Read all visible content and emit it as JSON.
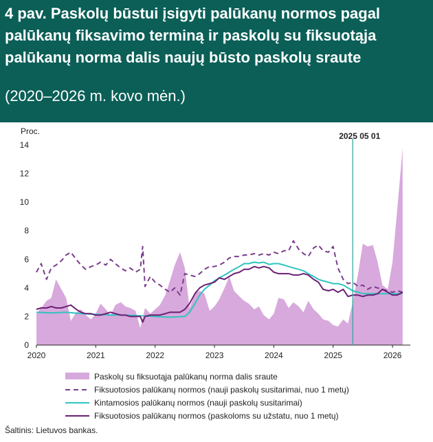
{
  "header": {
    "title": "4 pav. Paskolų būstui įsigyti palūkanų normos pagal palūkanų fiksavimo terminą ir paskolų su fiksuotąja palūkanų norma dalis naujų būsto paskolų sraute",
    "subtitle": "(2020–2026 m. kovo mėn.)"
  },
  "colors": {
    "header_bg": "#0b5f57",
    "area": "#d8a9dc",
    "fixed_new": "#7b3b8c",
    "variable": "#2ec4c0",
    "fixed_stock": "#6a1f73",
    "vline": "#2aa59b"
  },
  "source": "Šaltinis: Lietuvos bankas.",
  "chart_data": {
    "type": "line",
    "ylabel": "Proc.",
    "ylim": [
      0,
      14
    ],
    "y_ticks": [
      "0",
      "2",
      "4",
      "6",
      "8",
      "10",
      "12",
      "14"
    ],
    "x_range": [
      2020.0,
      2026.3
    ],
    "x_ticks": [
      "2020",
      "2021",
      "2022",
      "2023",
      "2024",
      "2025",
      "2026"
    ],
    "annotation": {
      "label": "2025 05 01",
      "x": 2025.33
    },
    "series": [
      {
        "name": "Paskolų su fiksuotąja palūkanų norma dalis sraute",
        "kind": "area",
        "x": [
          2020.0,
          2020.08,
          2020.17,
          2020.25,
          2020.33,
          2020.42,
          2020.5,
          2020.58,
          2020.67,
          2020.75,
          2020.83,
          2020.92,
          2021.0,
          2021.08,
          2021.17,
          2021.25,
          2021.33,
          2021.42,
          2021.5,
          2021.58,
          2021.67,
          2021.75,
          2021.83,
          2021.92,
          2022.0,
          2022.08,
          2022.17,
          2022.25,
          2022.33,
          2022.42,
          2022.5,
          2022.58,
          2022.67,
          2022.75,
          2022.83,
          2022.92,
          2023.0,
          2023.08,
          2023.17,
          2023.25,
          2023.33,
          2023.42,
          2023.5,
          2023.58,
          2023.67,
          2023.75,
          2023.83,
          2023.92,
          2024.0,
          2024.08,
          2024.17,
          2024.25,
          2024.33,
          2024.42,
          2024.5,
          2024.58,
          2024.67,
          2024.75,
          2024.83,
          2024.92,
          2025.0,
          2025.08,
          2025.17,
          2025.25,
          2025.33,
          2025.42,
          2025.5,
          2025.58,
          2025.67,
          2025.75,
          2025.83,
          2025.92,
          2026.0,
          2026.08,
          2026.17
        ],
        "values": [
          2.2,
          2.6,
          3.1,
          3.3,
          4.6,
          3.9,
          3.3,
          1.7,
          2.3,
          2.5,
          2.1,
          1.8,
          2.2,
          2.9,
          2.5,
          2.1,
          2.8,
          3.0,
          2.7,
          2.6,
          2.4,
          1.2,
          2.6,
          2.2,
          2.5,
          2.8,
          3.5,
          4.5,
          5.6,
          6.5,
          5.4,
          2.6,
          3.6,
          3.8,
          3.6,
          2.4,
          2.7,
          3.2,
          4.0,
          4.8,
          3.8,
          3.4,
          3.1,
          2.9,
          2.5,
          2.7,
          2.1,
          1.8,
          2.2,
          3.3,
          3.2,
          2.6,
          3.0,
          2.7,
          2.3,
          3.1,
          2.5,
          2.2,
          1.8,
          1.7,
          1.4,
          1.3,
          1.8,
          1.5,
          3.0,
          5.0,
          7.1,
          6.9,
          7.0,
          5.8,
          4.2,
          3.9,
          5.8,
          9.5,
          13.8
        ]
      },
      {
        "name": "Fiksuotosios palūkanų normos (nauji paskolų susitarimai, nuo 1 metų)",
        "kind": "dashed",
        "x": [
          2020.0,
          2020.08,
          2020.17,
          2020.25,
          2020.33,
          2020.42,
          2020.5,
          2020.58,
          2020.67,
          2020.75,
          2020.83,
          2020.92,
          2021.0,
          2021.08,
          2021.17,
          2021.25,
          2021.33,
          2021.42,
          2021.5,
          2021.58,
          2021.67,
          2021.75,
          2021.79,
          2021.83,
          2021.92,
          2022.0,
          2022.08,
          2022.17,
          2022.25,
          2022.33,
          2022.42,
          2022.5,
          2022.58,
          2022.67,
          2022.75,
          2022.83,
          2022.92,
          2023.0,
          2023.08,
          2023.17,
          2023.25,
          2023.33,
          2023.42,
          2023.5,
          2023.58,
          2023.67,
          2023.75,
          2023.83,
          2023.92,
          2024.0,
          2024.08,
          2024.17,
          2024.25,
          2024.33,
          2024.42,
          2024.5,
          2024.58,
          2024.67,
          2024.75,
          2024.83,
          2024.92,
          2025.0,
          2025.08,
          2025.17,
          2025.25,
          2025.33,
          2025.42,
          2025.5,
          2025.58,
          2025.67,
          2025.75,
          2025.83,
          2025.92,
          2026.0,
          2026.08,
          2026.17
        ],
        "values": [
          5.1,
          5.7,
          4.6,
          5.4,
          5.6,
          5.9,
          6.3,
          6.5,
          6.0,
          5.6,
          5.3,
          5.5,
          5.6,
          5.8,
          5.6,
          6.0,
          5.7,
          5.4,
          5.2,
          5.4,
          5.1,
          5.3,
          6.9,
          4.1,
          4.8,
          4.4,
          4.2,
          3.9,
          3.7,
          4.0,
          3.5,
          5.0,
          4.9,
          4.8,
          5.0,
          5.3,
          5.5,
          5.5,
          5.6,
          5.8,
          6.1,
          6.2,
          6.2,
          6.3,
          6.3,
          6.4,
          6.3,
          6.4,
          6.3,
          6.5,
          6.4,
          6.6,
          6.6,
          7.3,
          6.7,
          6.4,
          6.2,
          6.8,
          7.0,
          6.6,
          6.5,
          6.9,
          5.4,
          4.6,
          4.3,
          4.4,
          4.1,
          4.2,
          3.9,
          4.1,
          4.0,
          3.9,
          3.8,
          3.7,
          3.8,
          3.7
        ]
      },
      {
        "name": "Kintamosios palūkanų normos (nauji paskolų susitarimai)",
        "kind": "solid",
        "x": [
          2020.0,
          2020.25,
          2020.5,
          2020.75,
          2021.0,
          2021.25,
          2021.5,
          2021.75,
          2022.0,
          2022.25,
          2022.5,
          2022.58,
          2022.67,
          2022.75,
          2022.83,
          2022.92,
          2023.0,
          2023.08,
          2023.17,
          2023.25,
          2023.33,
          2023.42,
          2023.5,
          2023.58,
          2023.67,
          2023.75,
          2023.83,
          2023.92,
          2024.0,
          2024.08,
          2024.17,
          2024.25,
          2024.33,
          2024.42,
          2024.5,
          2024.58,
          2024.67,
          2024.75,
          2024.83,
          2024.92,
          2025.0,
          2025.08,
          2025.17,
          2025.25,
          2025.33,
          2025.42,
          2025.5,
          2025.67,
          2025.83,
          2026.0,
          2026.17
        ],
        "values": [
          2.3,
          2.25,
          2.3,
          2.2,
          2.15,
          2.1,
          2.1,
          2.05,
          2.0,
          1.95,
          2.0,
          2.3,
          2.9,
          3.5,
          3.9,
          4.2,
          4.5,
          4.7,
          4.9,
          5.1,
          5.3,
          5.5,
          5.7,
          5.7,
          5.8,
          5.75,
          5.8,
          5.65,
          5.7,
          5.7,
          5.6,
          5.5,
          5.4,
          5.3,
          5.2,
          5.0,
          4.8,
          4.6,
          4.5,
          4.4,
          4.3,
          4.3,
          4.2,
          4.0,
          3.8,
          3.7,
          3.6,
          3.6,
          3.6,
          3.6,
          3.6
        ]
      },
      {
        "name": "Fiksuotosios palūkanų normos (paskoloms su užstatu, nuo 1 metų)",
        "kind": "solid",
        "x": [
          2020.0,
          2020.08,
          2020.17,
          2020.25,
          2020.33,
          2020.42,
          2020.5,
          2020.58,
          2020.67,
          2020.75,
          2020.83,
          2020.92,
          2021.0,
          2021.08,
          2021.17,
          2021.25,
          2021.33,
          2021.42,
          2021.5,
          2021.58,
          2021.67,
          2021.75,
          2021.79,
          2021.83,
          2021.92,
          2022.0,
          2022.08,
          2022.17,
          2022.25,
          2022.33,
          2022.42,
          2022.5,
          2022.58,
          2022.67,
          2022.75,
          2022.83,
          2022.92,
          2023.0,
          2023.08,
          2023.17,
          2023.25,
          2023.33,
          2023.42,
          2023.5,
          2023.58,
          2023.67,
          2023.75,
          2023.83,
          2023.92,
          2024.0,
          2024.08,
          2024.17,
          2024.25,
          2024.33,
          2024.42,
          2024.5,
          2024.58,
          2024.67,
          2024.75,
          2024.83,
          2024.92,
          2025.0,
          2025.08,
          2025.17,
          2025.25,
          2025.33,
          2025.42,
          2025.5,
          2025.58,
          2025.67,
          2025.75,
          2025.83,
          2025.92,
          2026.0,
          2026.08,
          2026.17
        ],
        "values": [
          2.5,
          2.6,
          2.6,
          2.7,
          2.6,
          2.6,
          2.7,
          2.8,
          2.5,
          2.3,
          2.2,
          2.2,
          2.1,
          2.1,
          2.2,
          2.3,
          2.2,
          2.1,
          2.1,
          2.0,
          2.0,
          2.0,
          1.6,
          2.0,
          2.1,
          2.1,
          2.1,
          2.2,
          2.3,
          2.3,
          2.3,
          2.5,
          2.9,
          3.6,
          4.0,
          4.2,
          4.3,
          4.4,
          4.7,
          4.6,
          4.8,
          5.0,
          5.1,
          5.3,
          5.3,
          5.5,
          5.4,
          5.5,
          5.4,
          5.1,
          5.0,
          5.0,
          5.0,
          4.9,
          4.9,
          5.0,
          4.9,
          4.6,
          4.4,
          3.9,
          3.8,
          3.9,
          3.7,
          3.9,
          3.4,
          3.5,
          3.5,
          3.4,
          3.5,
          3.5,
          3.6,
          3.9,
          3.7,
          3.5,
          3.5,
          3.7
        ]
      }
    ],
    "legend": {
      "entries": [
        "Paskolų su fiksuotąja palūkanų norma dalis sraute",
        "Fiksuotosios palūkanų normos (nauji paskolų susitarimai, nuo 1 metų)",
        "Kintamosios palūkanų normos (nauji paskolų susitarimai)",
        "Fiksuotosios palūkanų normos (paskoloms su užstatu, nuo 1 metų)"
      ],
      "placement": "bottom"
    }
  }
}
